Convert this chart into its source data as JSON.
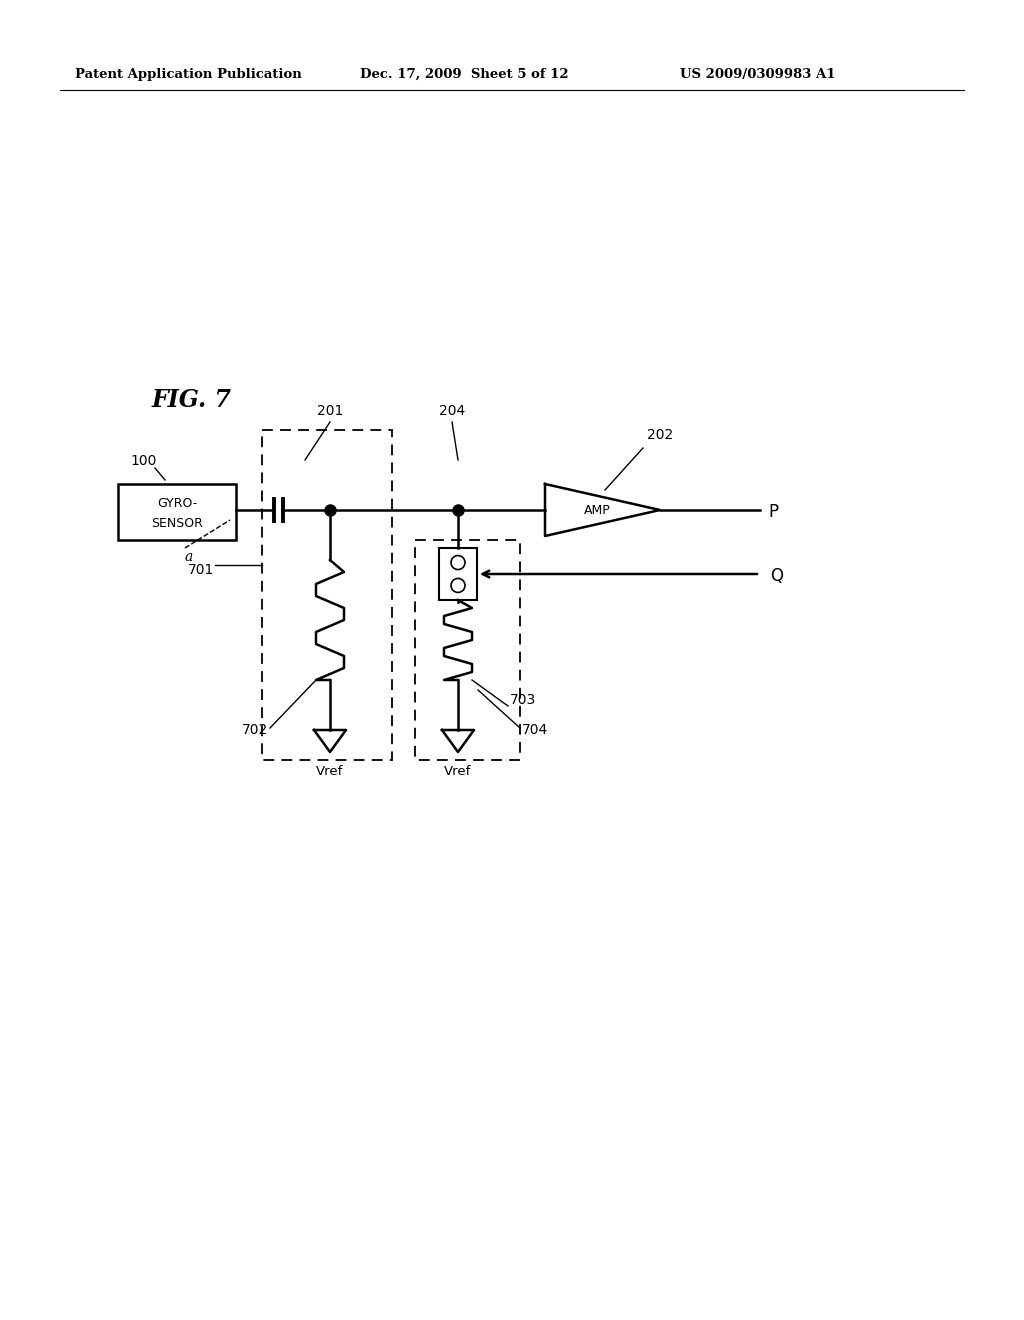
{
  "bg_color": "#ffffff",
  "header_left": "Patent Application Publication",
  "header_mid": "Dec. 17, 2009  Sheet 5 of 12",
  "header_right": "US 2009/0309983 A1",
  "fig_label": "FIG. 7"
}
